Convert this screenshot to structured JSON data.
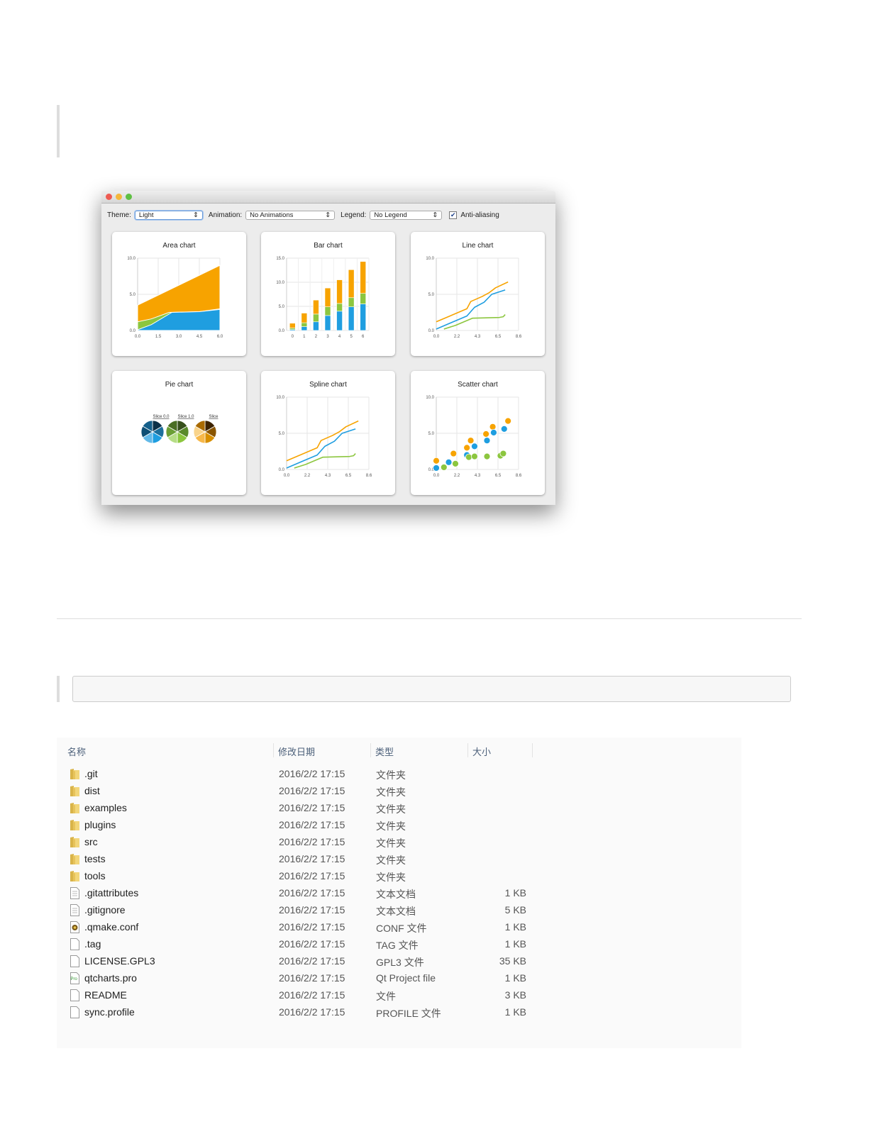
{
  "app_window": {
    "toolbar": {
      "theme_label": "Theme:",
      "theme_value": "Light",
      "animation_label": "Animation:",
      "animation_value": "No Animations",
      "legend_label": "Legend:",
      "legend_value": "No Legend",
      "antialiasing_label": "Anti-aliasing",
      "antialiasing_checked": true
    },
    "colors": {
      "blue": "#1f9ee0",
      "green": "#8cc63f",
      "orange": "#f7a300"
    },
    "charts": [
      {
        "title": "Area chart",
        "type": "area",
        "xticks": [
          "0.0",
          "1.5",
          "3.0",
          "4.5",
          "6.0"
        ],
        "yticks": [
          "0.0",
          "5.0",
          "10.0"
        ],
        "xlim": [
          0,
          6
        ],
        "ylim": [
          0,
          10
        ],
        "series": [
          {
            "color": "orange",
            "points": [
              [
                0,
                3.5
              ],
              [
                6,
                9.0
              ]
            ]
          },
          {
            "color": "green",
            "points": [
              [
                0,
                1.2
              ],
              [
                1,
                1.6
              ],
              [
                2.3,
                2.5
              ],
              [
                4.5,
                2.6
              ],
              [
                6,
                3.0
              ]
            ]
          },
          {
            "color": "blue",
            "points": [
              [
                0,
                0.1
              ],
              [
                1,
                0.8
              ],
              [
                2.5,
                2.5
              ],
              [
                4.5,
                2.6
              ],
              [
                6,
                2.9
              ]
            ]
          }
        ]
      },
      {
        "title": "Bar chart",
        "type": "stacked-bar",
        "categories": [
          "0",
          "1",
          "2",
          "3",
          "4",
          "5",
          "6"
        ],
        "yticks": [
          "0.0",
          "5.0",
          "10.0",
          "15.0"
        ],
        "ylim": [
          0,
          15
        ],
        "series": [
          {
            "color": "blue",
            "values": [
              0.2,
              0.8,
              1.8,
              3.1,
              4.0,
              4.9,
              5.5
            ]
          },
          {
            "color": "green",
            "values": [
              0.3,
              0.8,
              1.6,
              1.8,
              1.6,
              1.9,
              2.2
            ]
          },
          {
            "color": "orange",
            "values": [
              1.0,
              2.0,
              2.9,
              3.9,
              4.9,
              5.8,
              6.6
            ]
          }
        ]
      },
      {
        "title": "Line chart",
        "type": "line",
        "xticks": [
          "0.0",
          "2.2",
          "4.3",
          "6.5",
          "8.6"
        ],
        "yticks": [
          "0.0",
          "5.0",
          "10.0"
        ],
        "xlim": [
          0,
          8.6
        ],
        "ylim": [
          0,
          10
        ],
        "series": [
          {
            "color": "orange",
            "points": [
              [
                0,
                1.2
              ],
              [
                3.2,
                3.0
              ],
              [
                3.6,
                4.0
              ],
              [
                4.8,
                4.7
              ],
              [
                5.5,
                5.2
              ],
              [
                6.2,
                5.9
              ],
              [
                7.5,
                6.7
              ]
            ]
          },
          {
            "color": "blue",
            "points": [
              [
                0,
                0.2
              ],
              [
                1.6,
                1.1
              ],
              [
                3.2,
                2.0
              ],
              [
                4.0,
                3.2
              ],
              [
                5.0,
                3.9
              ],
              [
                5.8,
                5.0
              ],
              [
                7.2,
                5.6
              ]
            ]
          },
          {
            "color": "green",
            "points": [
              [
                0.8,
                0.2
              ],
              [
                2.0,
                0.7
              ],
              [
                3.8,
                1.7
              ],
              [
                6.6,
                1.8
              ],
              [
                7.0,
                1.9
              ],
              [
                7.2,
                2.2
              ]
            ]
          }
        ]
      },
      {
        "title": "Pie chart",
        "type": "pie",
        "labels": [
          "Slice 0.0",
          "Slice 1.0",
          "Slice"
        ],
        "palettes": [
          [
            "#0b3048",
            "#1d6f9c",
            "#1f9ee0",
            "#62b9e8",
            "#0e4f75",
            "#145f8a"
          ],
          [
            "#37501d",
            "#5a8a2c",
            "#8cc63f",
            "#b6dd86",
            "#6b9f34",
            "#4a6e24"
          ],
          [
            "#3d2300",
            "#8a5500",
            "#d88f00",
            "#f7b84a",
            "#f9d48c",
            "#a96a00"
          ]
        ]
      },
      {
        "title": "Spline chart",
        "type": "spline",
        "xticks": [
          "0.0",
          "2.2",
          "4.3",
          "6.5",
          "8.6"
        ],
        "yticks": [
          "0.0",
          "5.0",
          "10.0"
        ],
        "xlim": [
          0,
          8.6
        ],
        "ylim": [
          0,
          10
        ],
        "series": [
          {
            "color": "orange",
            "points": [
              [
                0,
                1.2
              ],
              [
                3.2,
                3.0
              ],
              [
                3.6,
                4.0
              ],
              [
                4.8,
                4.7
              ],
              [
                5.5,
                5.2
              ],
              [
                6.2,
                5.9
              ],
              [
                7.5,
                6.7
              ]
            ]
          },
          {
            "color": "blue",
            "points": [
              [
                0,
                0.2
              ],
              [
                1.6,
                1.1
              ],
              [
                3.2,
                2.0
              ],
              [
                4.0,
                3.2
              ],
              [
                5.0,
                3.9
              ],
              [
                5.8,
                5.0
              ],
              [
                7.2,
                5.6
              ]
            ]
          },
          {
            "color": "green",
            "points": [
              [
                0.8,
                0.2
              ],
              [
                2.0,
                0.7
              ],
              [
                3.8,
                1.7
              ],
              [
                6.6,
                1.8
              ],
              [
                7.0,
                1.9
              ],
              [
                7.2,
                2.2
              ]
            ]
          }
        ]
      },
      {
        "title": "Scatter chart",
        "type": "scatter",
        "xticks": [
          "0.0",
          "2.2",
          "4.3",
          "6.5",
          "8.6"
        ],
        "yticks": [
          "0.0",
          "5.0",
          "10.0"
        ],
        "xlim": [
          0,
          8.6
        ],
        "ylim": [
          0,
          10
        ],
        "series": [
          {
            "color": "orange",
            "points": [
              [
                0,
                1.2
              ],
              [
                1.8,
                2.2
              ],
              [
                3.2,
                3.0
              ],
              [
                3.6,
                4.0
              ],
              [
                5.2,
                4.9
              ],
              [
                5.9,
                5.9
              ],
              [
                7.5,
                6.7
              ]
            ]
          },
          {
            "color": "blue",
            "points": [
              [
                0,
                0.2
              ],
              [
                1.3,
                1.0
              ],
              [
                3.2,
                2.0
              ],
              [
                4.0,
                3.2
              ],
              [
                5.3,
                4.0
              ],
              [
                6.0,
                5.1
              ],
              [
                7.1,
                5.6
              ]
            ]
          },
          {
            "color": "green",
            "points": [
              [
                0.8,
                0.3
              ],
              [
                2.0,
                0.8
              ],
              [
                3.4,
                1.7
              ],
              [
                4.0,
                1.8
              ],
              [
                5.3,
                1.8
              ],
              [
                6.7,
                1.9
              ],
              [
                7.0,
                2.2
              ]
            ]
          }
        ]
      }
    ]
  },
  "file_list": {
    "headers": [
      "名称",
      "修改日期",
      "类型",
      "大小"
    ],
    "rows": [
      {
        "name": ".git",
        "date": "2016/2/2 17:15",
        "type": "文件夹",
        "size": "",
        "icon": "folder-icon"
      },
      {
        "name": "dist",
        "date": "2016/2/2 17:15",
        "type": "文件夹",
        "size": "",
        "icon": "folder-icon"
      },
      {
        "name": "examples",
        "date": "2016/2/2 17:15",
        "type": "文件夹",
        "size": "",
        "icon": "folder-icon"
      },
      {
        "name": "plugins",
        "date": "2016/2/2 17:15",
        "type": "文件夹",
        "size": "",
        "icon": "folder-icon"
      },
      {
        "name": "src",
        "date": "2016/2/2 17:15",
        "type": "文件夹",
        "size": "",
        "icon": "folder-icon"
      },
      {
        "name": "tests",
        "date": "2016/2/2 17:15",
        "type": "文件夹",
        "size": "",
        "icon": "folder-icon"
      },
      {
        "name": "tools",
        "date": "2016/2/2 17:15",
        "type": "文件夹",
        "size": "",
        "icon": "folder-icon"
      },
      {
        "name": ".gitattributes",
        "date": "2016/2/2 17:15",
        "type": "文本文档",
        "size": "1 KB",
        "icon": "text-file-icon"
      },
      {
        "name": ".gitignore",
        "date": "2016/2/2 17:15",
        "type": "文本文档",
        "size": "5 KB",
        "icon": "text-file-icon"
      },
      {
        "name": ".qmake.conf",
        "date": "2016/2/2 17:15",
        "type": "CONF 文件",
        "size": "1 KB",
        "icon": "conf-file-icon"
      },
      {
        "name": ".tag",
        "date": "2016/2/2 17:15",
        "type": "TAG 文件",
        "size": "1 KB",
        "icon": "file-icon"
      },
      {
        "name": "LICENSE.GPL3",
        "date": "2016/2/2 17:15",
        "type": "GPL3 文件",
        "size": "35 KB",
        "icon": "file-icon"
      },
      {
        "name": "qtcharts.pro",
        "date": "2016/2/2 17:15",
        "type": "Qt Project file",
        "size": "1 KB",
        "icon": "qt-project-file-icon"
      },
      {
        "name": "README",
        "date": "2016/2/2 17:15",
        "type": "文件",
        "size": "3 KB",
        "icon": "file-icon"
      },
      {
        "name": "sync.profile",
        "date": "2016/2/2 17:15",
        "type": "PROFILE 文件",
        "size": "1 KB",
        "icon": "file-icon"
      }
    ]
  }
}
